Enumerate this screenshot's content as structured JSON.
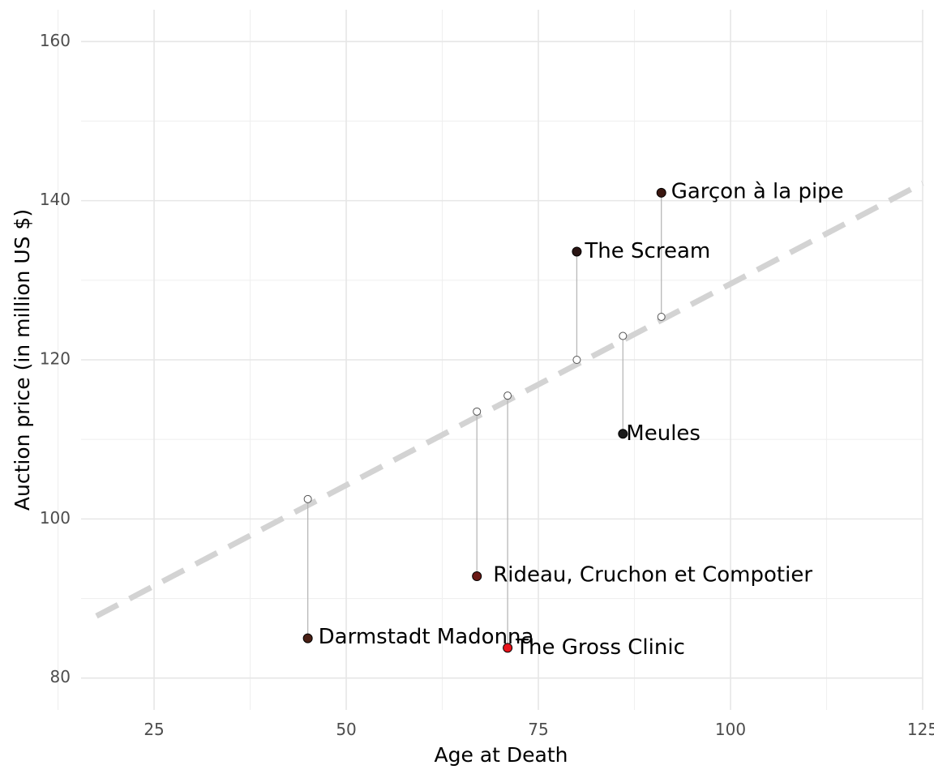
{
  "chart_data": {
    "type": "scatter",
    "xlabel": "Age at Death",
    "ylabel": "Auction price (in million US $)",
    "xlim": [
      15.5,
      125
    ],
    "ylim": [
      76,
      164
    ],
    "x_ticks": [
      25,
      50,
      75,
      100,
      125
    ],
    "y_ticks": [
      80,
      100,
      120,
      140,
      160
    ],
    "grid": true,
    "trend_line": {
      "style": "dashed",
      "color": "#d3d3d3",
      "from": {
        "x": 17.5,
        "y": 87.8
      },
      "to": {
        "x": 125,
        "y": 142.2
      }
    },
    "points": [
      {
        "label": "Garçon à la pipe",
        "x": 91,
        "y": 141.0,
        "fitted": 125.4,
        "color": "#3a1710"
      },
      {
        "label": "The Scream",
        "x": 80,
        "y": 133.6,
        "fitted": 120.0,
        "color": "#2a1513"
      },
      {
        "label": "Meules",
        "x": 86,
        "y": 110.7,
        "fitted": 123.0,
        "color": "#1a1a1a"
      },
      {
        "label": "Rideau, Cruchon et Compotier",
        "x": 67,
        "y": 92.8,
        "fitted": 113.5,
        "color": "#6b1a16"
      },
      {
        "label": "Darmstadt Madonna",
        "x": 45,
        "y": 85.0,
        "fitted": 102.5,
        "color": "#4a2015"
      },
      {
        "label": "The Gross Clinic",
        "x": 71,
        "y": 83.8,
        "fitted": 115.5,
        "color": "#e8141c"
      }
    ]
  }
}
